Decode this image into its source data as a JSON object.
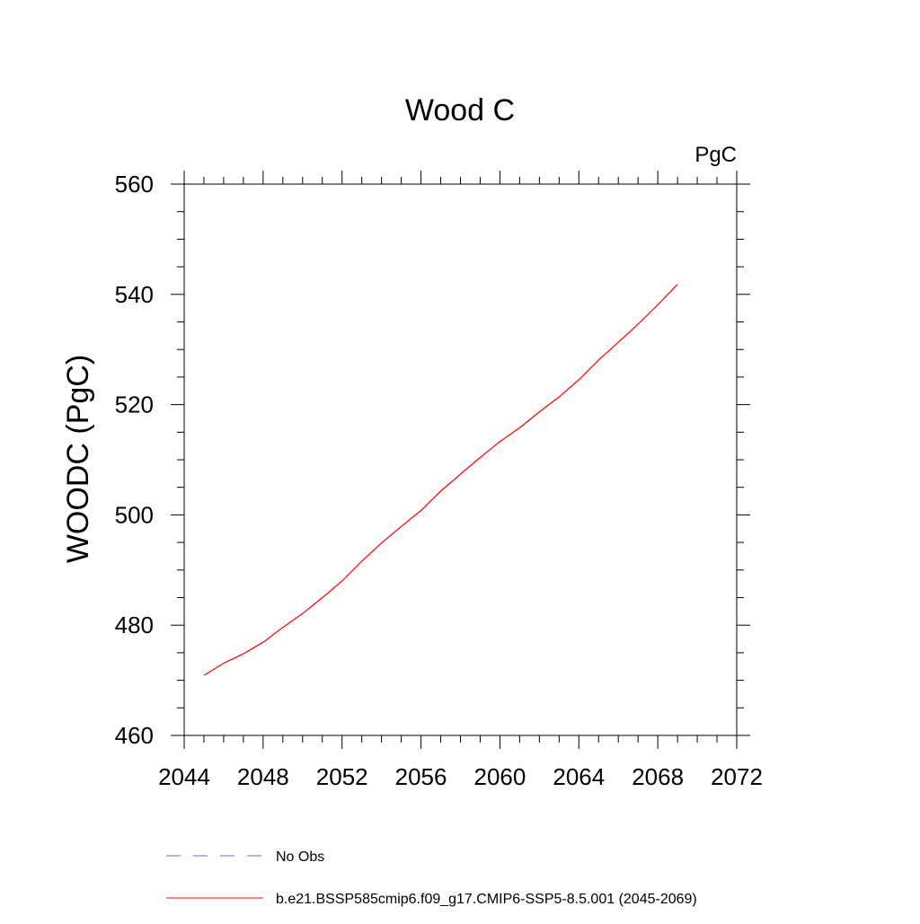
{
  "chart_data": {
    "type": "line",
    "title": "Wood C",
    "units_label": "PgC",
    "ylabel": "WOODC  (PgC)",
    "xlabel": "",
    "xlim": [
      2044,
      2072
    ],
    "ylim": [
      460,
      560
    ],
    "x_ticks": [
      2044,
      2048,
      2052,
      2056,
      2060,
      2064,
      2068,
      2072
    ],
    "y_ticks": [
      460,
      480,
      500,
      520,
      540,
      560
    ],
    "x_minor_step": 1,
    "y_minor_step": 5,
    "grid": false,
    "series": [
      {
        "name": "b.e21.BSSP585cmip6.f09_g17.CMIP6-SSP5-8.5.001 (2045-2069)",
        "color": "#ff0000",
        "style": "solid",
        "x": [
          2045,
          2046,
          2047,
          2048,
          2049,
          2050,
          2051,
          2052,
          2053,
          2054,
          2055,
          2056,
          2057,
          2058,
          2059,
          2060,
          2061,
          2062,
          2063,
          2064,
          2065,
          2066,
          2067,
          2068,
          2069
        ],
        "values": [
          470.9,
          473.1,
          474.8,
          476.9,
          479.6,
          482.1,
          485.0,
          488.0,
          491.6,
          494.9,
          497.9,
          500.8,
          504.3,
          507.4,
          510.4,
          513.3,
          515.8,
          518.7,
          521.4,
          524.5,
          528.1,
          531.3,
          534.6,
          538.1,
          541.8
        ]
      }
    ],
    "legend": [
      {
        "label": "No Obs",
        "color": "#6a6acd",
        "style": "dashed"
      },
      {
        "label": "b.e21.BSSP585cmip6.f09_g17.CMIP6-SSP5-8.5.001 (2045-2069)",
        "color": "#ff0000",
        "style": "solid"
      }
    ],
    "legend_placement": "bottom"
  }
}
